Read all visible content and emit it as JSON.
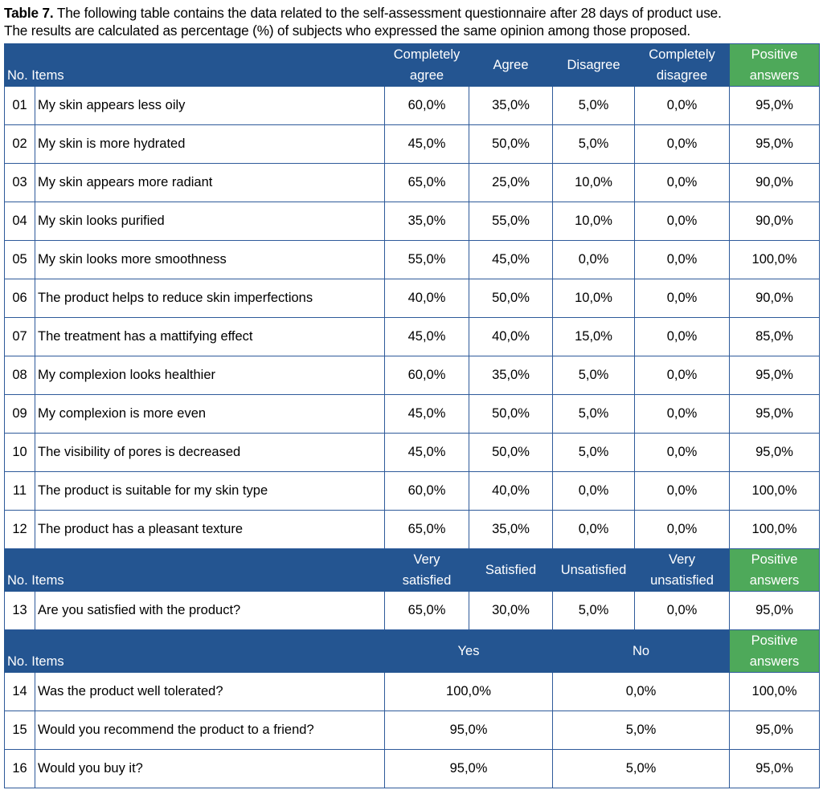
{
  "caption": {
    "label": "Table 7.",
    "line1": " The following table contains the data related to the self-assessment questionnaire after 28 days of product use.",
    "line2": "The results are calculated as percentage (%) of subjects who expressed the same opinion among those proposed."
  },
  "colors": {
    "header_blue": "#245591",
    "positive_green": "#4ea95a",
    "border_blue": "#2e5a9a"
  },
  "section1": {
    "headers": {
      "no_items": "No. Items",
      "col1": [
        "Completely",
        "agree"
      ],
      "col2": "Agree",
      "col3": "Disagree",
      "col4": [
        "Completely",
        "disagree"
      ],
      "col5": [
        "Positive",
        "answers"
      ]
    },
    "rows": [
      {
        "no": "01",
        "item": "My skin appears less oily",
        "v": [
          "60,0%",
          "35,0%",
          "5,0%",
          "0,0%",
          "95,0%"
        ]
      },
      {
        "no": "02",
        "item": "My skin is more hydrated",
        "v": [
          "45,0%",
          "50,0%",
          "5,0%",
          "0,0%",
          "95,0%"
        ]
      },
      {
        "no": "03",
        "item": "My skin appears more radiant",
        "v": [
          "65,0%",
          "25,0%",
          "10,0%",
          "0,0%",
          "90,0%"
        ]
      },
      {
        "no": "04",
        "item": "My skin looks purified",
        "v": [
          "35,0%",
          "55,0%",
          "10,0%",
          "0,0%",
          "90,0%"
        ]
      },
      {
        "no": "05",
        "item": "My skin looks more smoothness",
        "v": [
          "55,0%",
          "45,0%",
          "0,0%",
          "0,0%",
          "100,0%"
        ]
      },
      {
        "no": "06",
        "item": "The product helps to reduce skin imperfections",
        "v": [
          "40,0%",
          "50,0%",
          "10,0%",
          "0,0%",
          "90,0%"
        ]
      },
      {
        "no": "07",
        "item": "The treatment has a mattifying effect",
        "v": [
          "45,0%",
          "40,0%",
          "15,0%",
          "0,0%",
          "85,0%"
        ]
      },
      {
        "no": "08",
        "item": "My complexion looks healthier",
        "v": [
          "60,0%",
          "35,0%",
          "5,0%",
          "0,0%",
          "95,0%"
        ]
      },
      {
        "no": "09",
        "item": "My complexion is more even",
        "v": [
          "45,0%",
          "50,0%",
          "5,0%",
          "0,0%",
          "95,0%"
        ]
      },
      {
        "no": "10",
        "item": "The visibility of pores is decreased",
        "v": [
          "45,0%",
          "50,0%",
          "5,0%",
          "0,0%",
          "95,0%"
        ]
      },
      {
        "no": "11",
        "item": "The product is suitable for my skin type",
        "v": [
          "60,0%",
          "40,0%",
          "0,0%",
          "0,0%",
          "100,0%"
        ]
      },
      {
        "no": "12",
        "item": "The product has a pleasant texture",
        "v": [
          "65,0%",
          "35,0%",
          "0,0%",
          "0,0%",
          "100,0%"
        ]
      }
    ]
  },
  "section2": {
    "headers": {
      "no_items": "No. Items",
      "col1": [
        "Very",
        "satisfied"
      ],
      "col2": "Satisfied",
      "col3": "Unsatisfied",
      "col4": [
        "Very",
        "unsatisfied"
      ],
      "col5": [
        "Positive",
        "answers"
      ]
    },
    "rows": [
      {
        "no": "13",
        "item": "Are you satisfied with the product?",
        "v": [
          "65,0%",
          "30,0%",
          "5,0%",
          "0,0%",
          "95,0%"
        ]
      }
    ]
  },
  "section3": {
    "headers": {
      "no_items": "No. Items",
      "yes": "Yes",
      "no": "No",
      "col5": [
        "Positive",
        "answers"
      ]
    },
    "rows": [
      {
        "no": "14",
        "item": "Was the product well tolerated?",
        "v": [
          "100,0%",
          "0,0%",
          "100,0%"
        ]
      },
      {
        "no": "15",
        "item": "Would you recommend the product to a friend?",
        "v": [
          "95,0%",
          "5,0%",
          "95,0%"
        ]
      },
      {
        "no": "16",
        "item": "Would you buy it?",
        "v": [
          "95,0%",
          "5,0%",
          "95,0%"
        ]
      }
    ]
  }
}
